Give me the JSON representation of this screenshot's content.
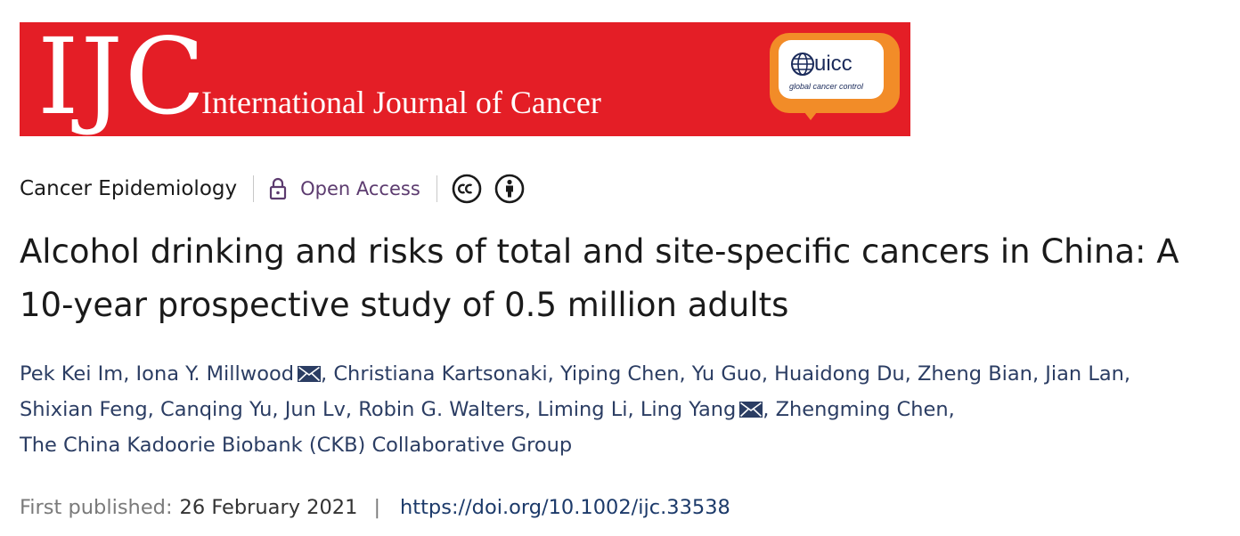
{
  "banner": {
    "logo": "IJC",
    "journal_name": "International Journal of Cancer",
    "partner_logo_text": "uicc",
    "partner_tagline": "global cancer control",
    "colors": {
      "banner_bg": "#e41e26",
      "partner_badge": "#f28c28"
    }
  },
  "meta": {
    "category": "Cancer Epidemiology",
    "access_label": "Open Access",
    "access_color": "#5c3b6f",
    "icons": [
      "lock-icon",
      "creative-commons-icon",
      "attribution-icon"
    ]
  },
  "article": {
    "title": "Alcohol drinking and risks of total and site‑specific cancers in China: A 10‑year prospective study of 0.5 million adults"
  },
  "authors": [
    {
      "name": "Pek Kei Im",
      "corresponding": false
    },
    {
      "name": "Iona Y. Millwood",
      "corresponding": true
    },
    {
      "name": "Christiana Kartsonaki",
      "corresponding": false
    },
    {
      "name": "Yiping Chen",
      "corresponding": false
    },
    {
      "name": "Yu Guo",
      "corresponding": false
    },
    {
      "name": "Huaidong Du",
      "corresponding": false
    },
    {
      "name": "Zheng Bian",
      "corresponding": false
    },
    {
      "name": "Jian Lan",
      "corresponding": false
    },
    {
      "name": "Shixian Feng",
      "corresponding": false
    },
    {
      "name": "Canqing Yu",
      "corresponding": false
    },
    {
      "name": "Jun Lv",
      "corresponding": false
    },
    {
      "name": "Robin G. Walters",
      "corresponding": false
    },
    {
      "name": "Liming Li",
      "corresponding": false
    },
    {
      "name": "Ling Yang",
      "corresponding": true
    },
    {
      "name": "Zhengming Chen",
      "corresponding": false
    },
    {
      "name": "The China Kadoorie Biobank (CKB) Collaborative Group",
      "corresponding": false
    }
  ],
  "author_separator": ",",
  "publication": {
    "label": "First published:",
    "date": "26 February 2021",
    "separator": "|",
    "doi": "https://doi.org/10.1002/ijc.33538"
  }
}
